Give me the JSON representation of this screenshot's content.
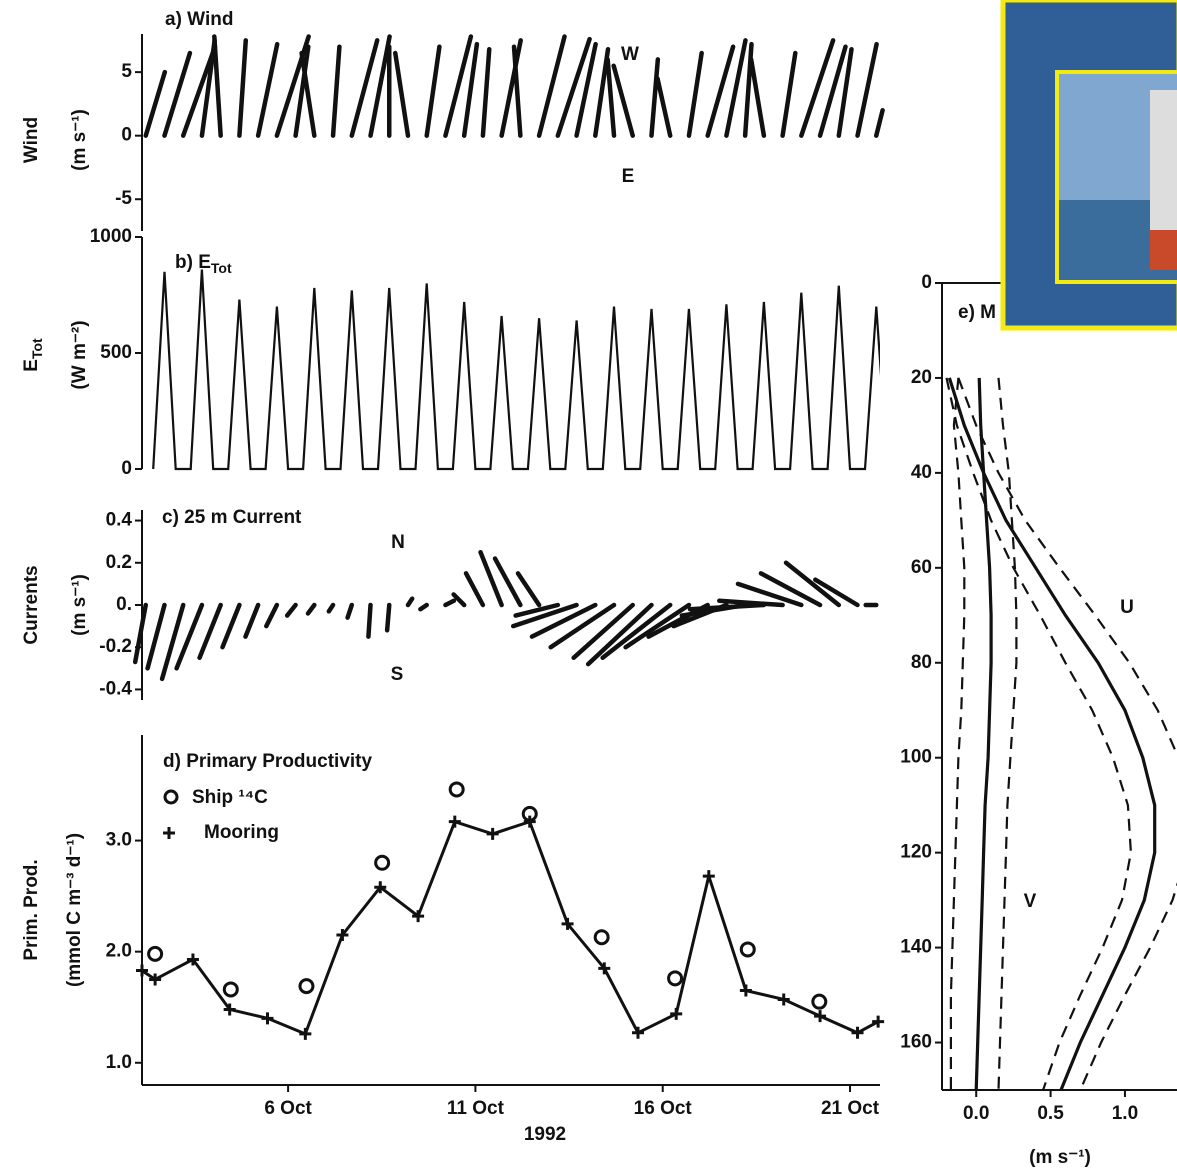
{
  "chart_data": [
    {
      "type": "stick",
      "title": "a) Wind",
      "y_label": "Wind",
      "y_unit": "(m s⁻¹)",
      "annotations": [
        "W",
        "E"
      ],
      "xlim": [
        2.1,
        21.8
      ],
      "ylim": [
        -7.5,
        8
      ],
      "yticks": [
        -5,
        0,
        5
      ],
      "color": "#111111",
      "x": [
        2.2,
        2.7,
        3.2,
        3.7,
        4.2,
        4.7,
        5.2,
        5.7,
        6.2,
        6.7,
        7.2,
        7.7,
        8.2,
        8.7,
        9.2,
        9.7,
        10.2,
        10.7,
        11.2,
        11.7,
        12.2,
        12.7,
        13.2,
        13.7,
        14.2,
        14.7,
        15.2,
        15.7,
        16.2,
        16.7,
        17.2,
        17.7,
        18.2,
        18.7,
        19.2,
        19.7,
        20.2,
        20.7,
        21.2,
        21.7
      ],
      "u": [
        1.5,
        2.0,
        2.5,
        1.0,
        -0.5,
        0.5,
        1.5,
        2.5,
        1.0,
        -1.0,
        0.5,
        2.0,
        1.5,
        0.0,
        -1.0,
        1.0,
        2.0,
        1.0,
        0.5,
        1.5,
        -0.5,
        2.0,
        2.5,
        1.5,
        1.0,
        -0.5,
        -1.5,
        0.5,
        -1.0,
        1.0,
        2.0,
        1.5,
        0.5,
        -1.0,
        1.0,
        2.5,
        2.0,
        1.0,
        1.5,
        0.5
      ],
      "v": [
        5.0,
        6.5,
        7.0,
        7.5,
        7.8,
        7.5,
        7.2,
        7.8,
        7.0,
        6.5,
        7.0,
        7.5,
        7.8,
        7.0,
        6.5,
        7.0,
        7.8,
        7.2,
        6.8,
        7.5,
        7.0,
        7.8,
        7.6,
        7.2,
        6.8,
        6.0,
        5.5,
        6.0,
        4.5,
        6.5,
        7.0,
        7.5,
        7.2,
        6.0,
        6.5,
        7.5,
        7.0,
        6.8,
        7.2,
        2.0
      ]
    },
    {
      "type": "line",
      "title": "b) E",
      "title_sub": "Tot",
      "y_label": "E",
      "y_label_sub": "Tot",
      "y_unit": "(W m⁻²)",
      "xlim": [
        2.1,
        21.8
      ],
      "ylim": [
        0,
        1000
      ],
      "yticks": [
        0,
        500,
        1000
      ],
      "color": "#111111",
      "x": [
        2.4,
        2.7,
        3.0,
        3.4,
        3.7,
        4.0,
        4.4,
        4.7,
        5.0,
        5.4,
        5.7,
        6.0,
        6.4,
        6.7,
        7.0,
        7.4,
        7.7,
        8.0,
        8.4,
        8.7,
        9.0,
        9.4,
        9.7,
        10.0,
        10.4,
        10.7,
        11.0,
        11.4,
        11.7,
        12.0,
        12.4,
        12.7,
        13.0,
        13.4,
        13.7,
        14.0,
        14.4,
        14.7,
        15.0,
        15.4,
        15.7,
        16.0,
        16.4,
        16.7,
        17.0,
        17.4,
        17.7,
        18.0,
        18.4,
        18.7,
        19.0,
        19.4,
        19.7,
        20.0,
        20.4,
        20.7,
        21.0,
        21.4,
        21.7,
        22.0
      ],
      "values": [
        0,
        850,
        0,
        0,
        860,
        0,
        0,
        730,
        0,
        0,
        700,
        0,
        0,
        780,
        0,
        0,
        770,
        0,
        0,
        780,
        0,
        0,
        800,
        0,
        0,
        720,
        0,
        0,
        660,
        0,
        0,
        650,
        0,
        0,
        640,
        0,
        0,
        700,
        0,
        0,
        690,
        0,
        0,
        690,
        0,
        0,
        710,
        0,
        0,
        720,
        0,
        0,
        760,
        0,
        0,
        790,
        0,
        0,
        700,
        0
      ]
    },
    {
      "type": "stick",
      "title": "c) 25 m Current",
      "y_label": "Currents",
      "y_unit": "(m s⁻¹)",
      "annotations": [
        "N",
        "S"
      ],
      "xlim": [
        2.1,
        21.8
      ],
      "ylim": [
        -0.45,
        0.45
      ],
      "yticks": [
        0.4,
        0.2,
        {
          "value": 0,
          "label": "0."
        },
        -0.2,
        -0.4
      ],
      "color": "#111111",
      "x": [
        2.2,
        2.7,
        3.2,
        3.7,
        4.2,
        4.7,
        5.2,
        5.7,
        6.2,
        6.7,
        7.2,
        7.7,
        8.2,
        8.7,
        9.2,
        9.7,
        10.2,
        10.7,
        11.2,
        11.7,
        12.2,
        12.7,
        13.2,
        13.7,
        14.2,
        14.7,
        15.2,
        15.7,
        16.2,
        16.7,
        17.2,
        17.7,
        18.2,
        18.7,
        19.2,
        19.7,
        20.2,
        20.7,
        21.2,
        21.7
      ],
      "u": [
        -0.05,
        -0.08,
        -0.1,
        -0.12,
        -0.1,
        -0.08,
        -0.06,
        -0.05,
        -0.04,
        -0.03,
        -0.02,
        -0.02,
        -0.01,
        -0.01,
        0.02,
        -0.03,
        0.04,
        -0.05,
        -0.08,
        -0.1,
        -0.12,
        -0.1,
        -0.2,
        -0.3,
        -0.3,
        -0.3,
        -0.28,
        -0.3,
        -0.32,
        -0.3,
        -0.28,
        -0.25,
        -0.3,
        -0.35,
        -0.3,
        -0.3,
        -0.28,
        -0.25,
        -0.2,
        -0.05
      ],
      "v": [
        -0.27,
        -0.3,
        -0.35,
        -0.3,
        -0.25,
        -0.2,
        -0.15,
        -0.1,
        -0.05,
        -0.04,
        -0.03,
        -0.06,
        -0.15,
        -0.12,
        0.03,
        -0.02,
        0.02,
        0.05,
        0.15,
        0.25,
        0.22,
        0.15,
        -0.05,
        -0.1,
        -0.15,
        -0.2,
        -0.25,
        -0.28,
        -0.25,
        -0.2,
        -0.15,
        -0.1,
        -0.05,
        -0.02,
        0.02,
        0.1,
        0.15,
        0.2,
        0.12,
        0.0
      ]
    },
    {
      "type": "line",
      "title": "d) Primary Productivity",
      "y_label": "Prim. Prod.",
      "y_unit": "(mmol C m⁻³ d⁻¹)",
      "x_label": "1992",
      "xlim": [
        2.1,
        21.8
      ],
      "ylim": [
        0.8,
        3.95
      ],
      "yticks": [
        {
          "value": 1,
          "label": "1.0"
        },
        {
          "value": 2,
          "label": "2.0"
        },
        {
          "value": 3,
          "label": "3.0"
        }
      ],
      "xticks": [
        {
          "value": 6,
          "label": "6 Oct"
        },
        {
          "value": 11,
          "label": "11 Oct"
        },
        {
          "value": 16,
          "label": "16 Oct"
        },
        {
          "value": 21,
          "label": "21 Oct"
        }
      ],
      "series": [
        {
          "name": "Ship ¹⁴C",
          "color": "#111111",
          "marker": "circle",
          "line": false,
          "x": [
            2.45,
            4.47,
            6.49,
            8.51,
            10.5,
            12.45,
            14.37,
            16.33,
            18.27,
            20.18
          ],
          "values": [
            1.98,
            1.66,
            1.69,
            2.8,
            3.46,
            3.24,
            2.13,
            1.76,
            2.02,
            1.55
          ]
        },
        {
          "name": "Mooring",
          "color": "#111111",
          "marker": "plus",
          "line": true,
          "x": [
            2.1,
            2.45,
            3.46,
            4.44,
            5.45,
            6.46,
            7.45,
            8.46,
            9.47,
            10.45,
            11.46,
            12.45,
            13.46,
            14.44,
            15.34,
            16.36,
            17.23,
            18.22,
            19.23,
            20.2,
            21.2,
            21.75
          ],
          "values": [
            1.83,
            1.75,
            1.93,
            1.48,
            1.4,
            1.26,
            2.15,
            2.58,
            2.32,
            3.17,
            3.06,
            3.17,
            2.25,
            1.85,
            1.27,
            1.44,
            2.68,
            1.65,
            1.57,
            1.42,
            1.27,
            1.37
          ]
        }
      ]
    },
    {
      "type": "profile",
      "title": "e) M",
      "x_label": "(m s⁻¹)",
      "xlim": [
        -0.23,
        1.35
      ],
      "ylim": [
        0,
        170
      ],
      "xticks": [
        {
          "value": 0,
          "label": "0.0"
        },
        {
          "value": 0.5,
          "label": "0.5"
        },
        {
          "value": 1,
          "label": "1.0"
        }
      ],
      "yticks": [
        0,
        20,
        40,
        60,
        80,
        100,
        120,
        140,
        160
      ],
      "depth": [
        20,
        30,
        40,
        50,
        60,
        70,
        80,
        90,
        100,
        110,
        120,
        130,
        140,
        150,
        160,
        170
      ],
      "series": [
        {
          "name": "U",
          "dashed": false,
          "values": [
            -0.18,
            -0.08,
            0.05,
            0.2,
            0.4,
            0.6,
            0.82,
            1.0,
            1.12,
            1.2,
            1.2,
            1.13,
            1.0,
            0.85,
            0.7,
            0.57
          ]
        },
        {
          "dashed": true,
          "values": [
            -0.2,
            -0.13,
            -0.02,
            0.1,
            0.25,
            0.43,
            0.6,
            0.78,
            0.92,
            1.02,
            1.04,
            0.98,
            0.85,
            0.7,
            0.56,
            0.45
          ]
        },
        {
          "dashed": true,
          "values": [
            -0.12,
            0.0,
            0.15,
            0.33,
            0.56,
            0.8,
            1.03,
            1.22,
            1.36,
            1.43,
            1.42,
            1.32,
            1.17,
            1.0,
            0.84,
            0.7
          ]
        },
        {
          "name": "V",
          "dashed": false,
          "values": [
            0.02,
            0.03,
            0.05,
            0.07,
            0.09,
            0.1,
            0.1,
            0.09,
            0.08,
            0.06,
            0.05,
            0.04,
            0.03,
            0.02,
            0.01,
            0.0
          ]
        },
        {
          "dashed": true,
          "values": [
            -0.12,
            -0.15,
            -0.12,
            -0.1,
            -0.08,
            -0.08,
            -0.09,
            -0.1,
            -0.12,
            -0.13,
            -0.14,
            -0.15,
            -0.16,
            -0.17,
            -0.17,
            -0.17
          ]
        },
        {
          "dashed": true,
          "values": [
            0.15,
            0.18,
            0.22,
            0.24,
            0.26,
            0.27,
            0.27,
            0.25,
            0.23,
            0.21,
            0.2,
            0.19,
            0.18,
            0.17,
            0.16,
            0.15
          ]
        }
      ]
    }
  ]
}
